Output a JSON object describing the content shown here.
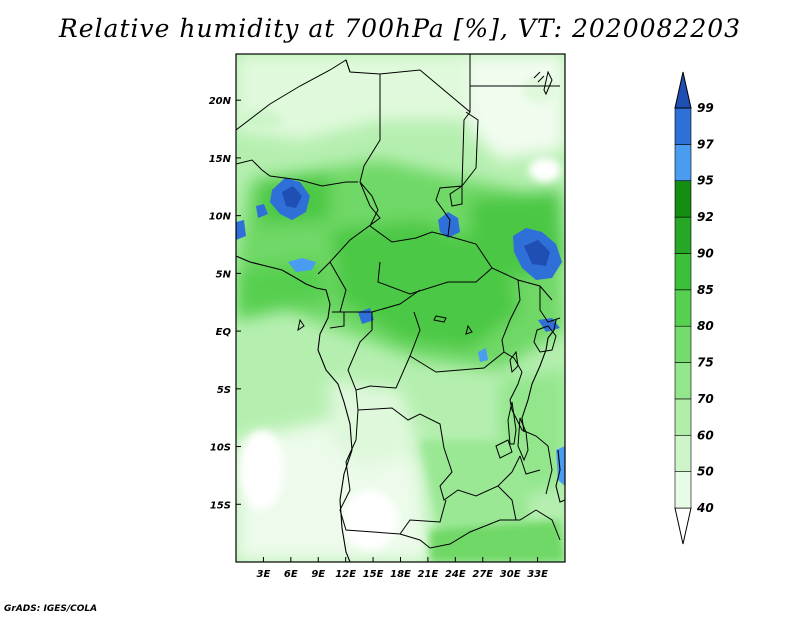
{
  "title": "Relative humidity at 700hPa [%], VT: 2020082203",
  "credit": "GrADS: IGES/COLA",
  "map": {
    "lon_range": [
      0,
      36
    ],
    "lat_range": [
      -20,
      24
    ],
    "lon_ticks": [
      "3E",
      "6E",
      "9E",
      "12E",
      "15E",
      "18E",
      "21E",
      "24E",
      "27E",
      "30E",
      "33E"
    ],
    "lat_ticks": [
      "20N",
      "15N",
      "10N",
      "5N",
      "EQ",
      "5S",
      "10S",
      "15S"
    ]
  },
  "colorbar": {
    "levels": [
      "40",
      "50",
      "60",
      "70",
      "75",
      "80",
      "85",
      "90",
      "92",
      "95",
      "97",
      "99"
    ],
    "colors": [
      "#ffffff",
      "#e8fbe6",
      "#cdf5c9",
      "#b0eeaa",
      "#93e68c",
      "#73dc6c",
      "#56d04f",
      "#3cbf39",
      "#27a726",
      "#138d12",
      "#4a9cf0",
      "#2f6fd8",
      "#1f4fb2"
    ]
  },
  "chart_data": {
    "type": "heatmap",
    "title": "Relative humidity at 700hPa [%], VT: 2020082203",
    "variable": "Relative humidity at 700hPa",
    "units": "%",
    "valid_time": "2020082203",
    "x_ticks": [
      "3E",
      "6E",
      "9E",
      "12E",
      "15E",
      "18E",
      "21E",
      "24E",
      "27E",
      "30E",
      "33E"
    ],
    "y_ticks": [
      "20N",
      "15N",
      "10N",
      "5N",
      "EQ",
      "5S",
      "10S",
      "15S"
    ],
    "xlim": [
      0,
      36
    ],
    "ylim": [
      -20,
      24
    ],
    "contour_levels": [
      40,
      50,
      60,
      70,
      75,
      80,
      85,
      90,
      92,
      95,
      97,
      99
    ],
    "regions": [
      {
        "lon": [
          3,
          9
        ],
        "lat": [
          8,
          15
        ],
        "rh": 97
      },
      {
        "lon": [
          21,
          24
        ],
        "lat": [
          9,
          12
        ],
        "rh": 95
      },
      {
        "lon": [
          30,
          36
        ],
        "lat": [
          6,
          10
        ],
        "rh": 97
      },
      {
        "lon": [
          12,
          27
        ],
        "lat": [
          0,
          14
        ],
        "rh": 85
      },
      {
        "lon": [
          0,
          12
        ],
        "lat": [
          2,
          8
        ],
        "rh": 80
      },
      {
        "lon": [
          0,
          36
        ],
        "lat": [
          -10,
          0
        ],
        "rh": 70
      },
      {
        "lon": [
          0,
          36
        ],
        "lat": [
          14,
          22
        ],
        "rh": 60
      },
      {
        "lon": [
          10,
          20
        ],
        "lat": [
          -20,
          -10
        ],
        "rh": 45
      }
    ]
  }
}
